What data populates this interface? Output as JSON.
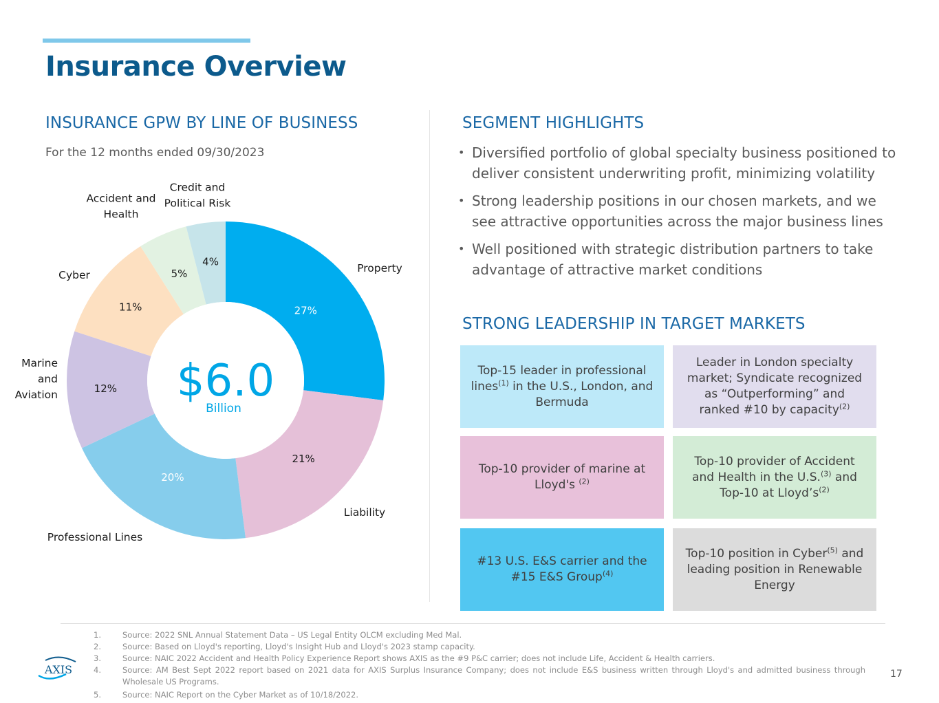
{
  "page": {
    "title": "Insurance Overview",
    "page_number": "17",
    "logo_text": "AXIS"
  },
  "left": {
    "heading": "INSURANCE GPW BY LINE OF BUSINESS",
    "subtitle": "For the 12 months ended 09/30/2023",
    "center_value": "$6.0",
    "center_unit": "Billion"
  },
  "chart_data": {
    "type": "pie",
    "categories": [
      "Property",
      "Liability",
      "Professional Lines",
      "Marine and Aviation",
      "Cyber",
      "Accident and Health",
      "Credit and Political Risk"
    ],
    "values": [
      27,
      21,
      20,
      12,
      11,
      5,
      4
    ],
    "value_labels": [
      "27%",
      "21%",
      "20%",
      "12%",
      "11%",
      "5%",
      "4%"
    ],
    "colors": [
      "#00adef",
      "#e5c0d8",
      "#86cdec",
      "#cdc3e3",
      "#fde0c1",
      "#e2f2e2",
      "#c6e4ea"
    ],
    "label_colors": [
      "#ffffff",
      "#1a1a1a",
      "#ffffff",
      "#1a1a1a",
      "#1a1a1a",
      "#1a1a1a",
      "#1a1a1a"
    ],
    "category_label_lines": [
      [
        "Property"
      ],
      [
        "Liability"
      ],
      [
        "Professional Lines"
      ],
      [
        "Marine",
        "and",
        "Aviation"
      ],
      [
        "Cyber"
      ],
      [
        "Accident and",
        "Health"
      ],
      [
        "Credit and",
        "Political Risk"
      ]
    ],
    "center_value": "$6.0",
    "center_unit": "Billion",
    "hole": "donut"
  },
  "right": {
    "heading": "SEGMENT HIGHLIGHTS",
    "bullets": [
      "Diversified portfolio of global specialty business positioned to deliver consistent underwriting profit, minimizing volatility",
      "Strong leadership positions in our chosen markets, and we see attractive opportunities across the major business lines",
      "Well positioned with strategic distribution partners to take advantage of attractive market conditions"
    ],
    "leadership_heading": "STRONG LEADERSHIP IN TARGET MARKETS"
  },
  "boxes": [
    {
      "bg": "#bde9f9",
      "parts": [
        "Top-15 leader in professional lines",
        "(1)",
        " in the U.S., London, and Bermuda"
      ]
    },
    {
      "bg": "#e1ddee",
      "parts": [
        "Leader in London specialty market; Syndicate recognized as “Outperforming” and ranked #10 by capacity",
        "(2)",
        ""
      ]
    },
    {
      "bg": "#e8c1da",
      "parts": [
        "Top-10 provider of marine at Lloyd's ",
        "(2)",
        ""
      ]
    },
    {
      "bg": "#d3ecd6",
      "parts": [
        "Top-10 provider of Accident and Health in the U.S.",
        "(3)",
        " and Top-10 at Lloyd’s",
        "(2)",
        ""
      ]
    },
    {
      "bg": "#52c7f1",
      "parts": [
        "#13 U.S. E&S carrier and the #15 E&S Group",
        "(4)",
        ""
      ]
    },
    {
      "bg": "#dcdcdc",
      "parts": [
        "Top-10 position in Cyber",
        "(5)",
        " and leading position in Renewable Energy"
      ]
    }
  ],
  "footnotes": [
    {
      "num": "1.",
      "text": "Source: 2022 SNL Annual Statement Data – US Legal Entity OLCM excluding Med Mal."
    },
    {
      "num": "2.",
      "text": "Source: Based on Lloyd's reporting, Lloyd's Insight Hub and Lloyd's 2023 stamp capacity."
    },
    {
      "num": "3.",
      "text": "Source: NAIC 2022 Accident and Health Policy Experience Report shows AXIS as the #9 P&C carrier; does not include Life, Accident & Health carriers."
    },
    {
      "num": "4.",
      "text": "Source: AM Best Sept 2022 report based on 2021 data for AXIS Surplus Insurance Company; does not include E&S business written through Lloyd's and admitted business through Wholesale US Programs."
    },
    {
      "num": "5.",
      "text": "Source: NAIC Report on the Cyber Market as of 10/18/2022."
    }
  ]
}
